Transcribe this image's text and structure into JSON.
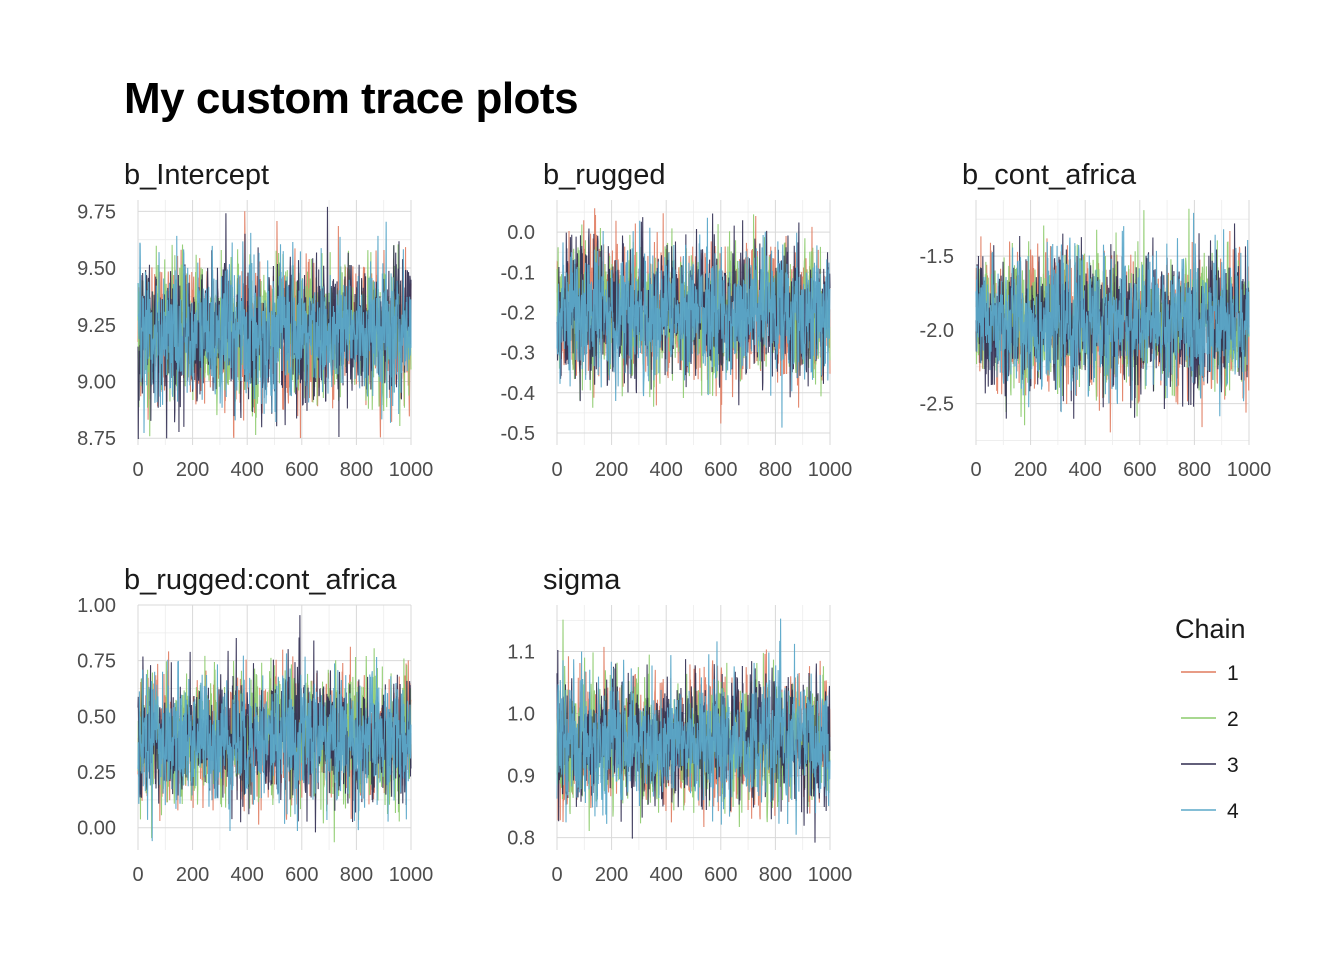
{
  "title": "My custom trace plots",
  "legend": {
    "title": "Chain",
    "items": [
      {
        "label": "1",
        "color": "#E07B5F"
      },
      {
        "label": "2",
        "color": "#8CCB6B"
      },
      {
        "label": "3",
        "color": "#2E2A4F"
      },
      {
        "label": "4",
        "color": "#5BA8C9"
      }
    ]
  },
  "chart_data": [
    {
      "type": "line",
      "title": "b_Intercept",
      "xlim": [
        0,
        1000
      ],
      "ylim": [
        8.72,
        9.8
      ],
      "xticks": [
        0,
        200,
        400,
        600,
        800,
        1000
      ],
      "xtick_labels": [
        "0",
        "200",
        "400",
        "600",
        "800",
        "1000"
      ],
      "yticks": [
        8.75,
        9.0,
        9.25,
        9.5,
        9.75
      ],
      "ytick_labels": [
        "8.75",
        "9.00",
        "9.25",
        "9.50",
        "9.75"
      ],
      "grid": true,
      "series_summary": {
        "mean": 9.22,
        "sd": 0.15,
        "min": 8.74,
        "max": 9.78
      }
    },
    {
      "type": "line",
      "title": "b_rugged",
      "xlim": [
        0,
        1000
      ],
      "ylim": [
        -0.53,
        0.08
      ],
      "xticks": [
        0,
        200,
        400,
        600,
        800,
        1000
      ],
      "xtick_labels": [
        "0",
        "200",
        "400",
        "600",
        "800",
        "1000"
      ],
      "yticks": [
        -0.5,
        -0.4,
        -0.3,
        -0.2,
        -0.1,
        0.0
      ],
      "ytick_labels": [
        "-0.5",
        "-0.4",
        "-0.3",
        "-0.2",
        "-0.1",
        "0.0"
      ],
      "grid": true,
      "series_summary": {
        "mean": -0.2,
        "sd": 0.08,
        "min": -0.5,
        "max": 0.06
      }
    },
    {
      "type": "line",
      "title": "b_cont_africa",
      "xlim": [
        0,
        1000
      ],
      "ylim": [
        -2.78,
        -1.12
      ],
      "xticks": [
        0,
        200,
        400,
        600,
        800,
        1000
      ],
      "xtick_labels": [
        "0",
        "200",
        "400",
        "600",
        "800",
        "1000"
      ],
      "yticks": [
        -2.5,
        -2.0,
        -1.5
      ],
      "ytick_labels": [
        "-2.5",
        "-2.0",
        "-1.5"
      ],
      "grid": true,
      "series_summary": {
        "mean": -1.95,
        "sd": 0.22,
        "min": -2.72,
        "max": -1.17
      }
    },
    {
      "type": "line",
      "title": "b_rugged:cont_africa",
      "xlim": [
        0,
        1000
      ],
      "ylim": [
        -0.1,
        1.0
      ],
      "xticks": [
        0,
        200,
        400,
        600,
        800,
        1000
      ],
      "xtick_labels": [
        "0",
        "200",
        "400",
        "600",
        "800",
        "1000"
      ],
      "yticks": [
        0.0,
        0.25,
        0.5,
        0.75,
        1.0
      ],
      "ytick_labels": [
        "0.00",
        "0.25",
        "0.50",
        "0.75",
        "1.00"
      ],
      "grid": true,
      "series_summary": {
        "mean": 0.4,
        "sd": 0.14,
        "min": -0.07,
        "max": 0.97
      }
    },
    {
      "type": "line",
      "title": "sigma",
      "xlim": [
        0,
        1000
      ],
      "ylim": [
        0.78,
        1.175
      ],
      "xticks": [
        0,
        200,
        400,
        600,
        800,
        1000
      ],
      "xtick_labels": [
        "0",
        "200",
        "400",
        "600",
        "800",
        "1000"
      ],
      "yticks": [
        0.8,
        0.9,
        1.0,
        1.1
      ],
      "ytick_labels": [
        "0.8",
        "0.9",
        "1.0",
        "1.1"
      ],
      "grid": true,
      "series_summary": {
        "mean": 0.955,
        "sd": 0.05,
        "min": 0.79,
        "max": 1.16
      }
    }
  ]
}
